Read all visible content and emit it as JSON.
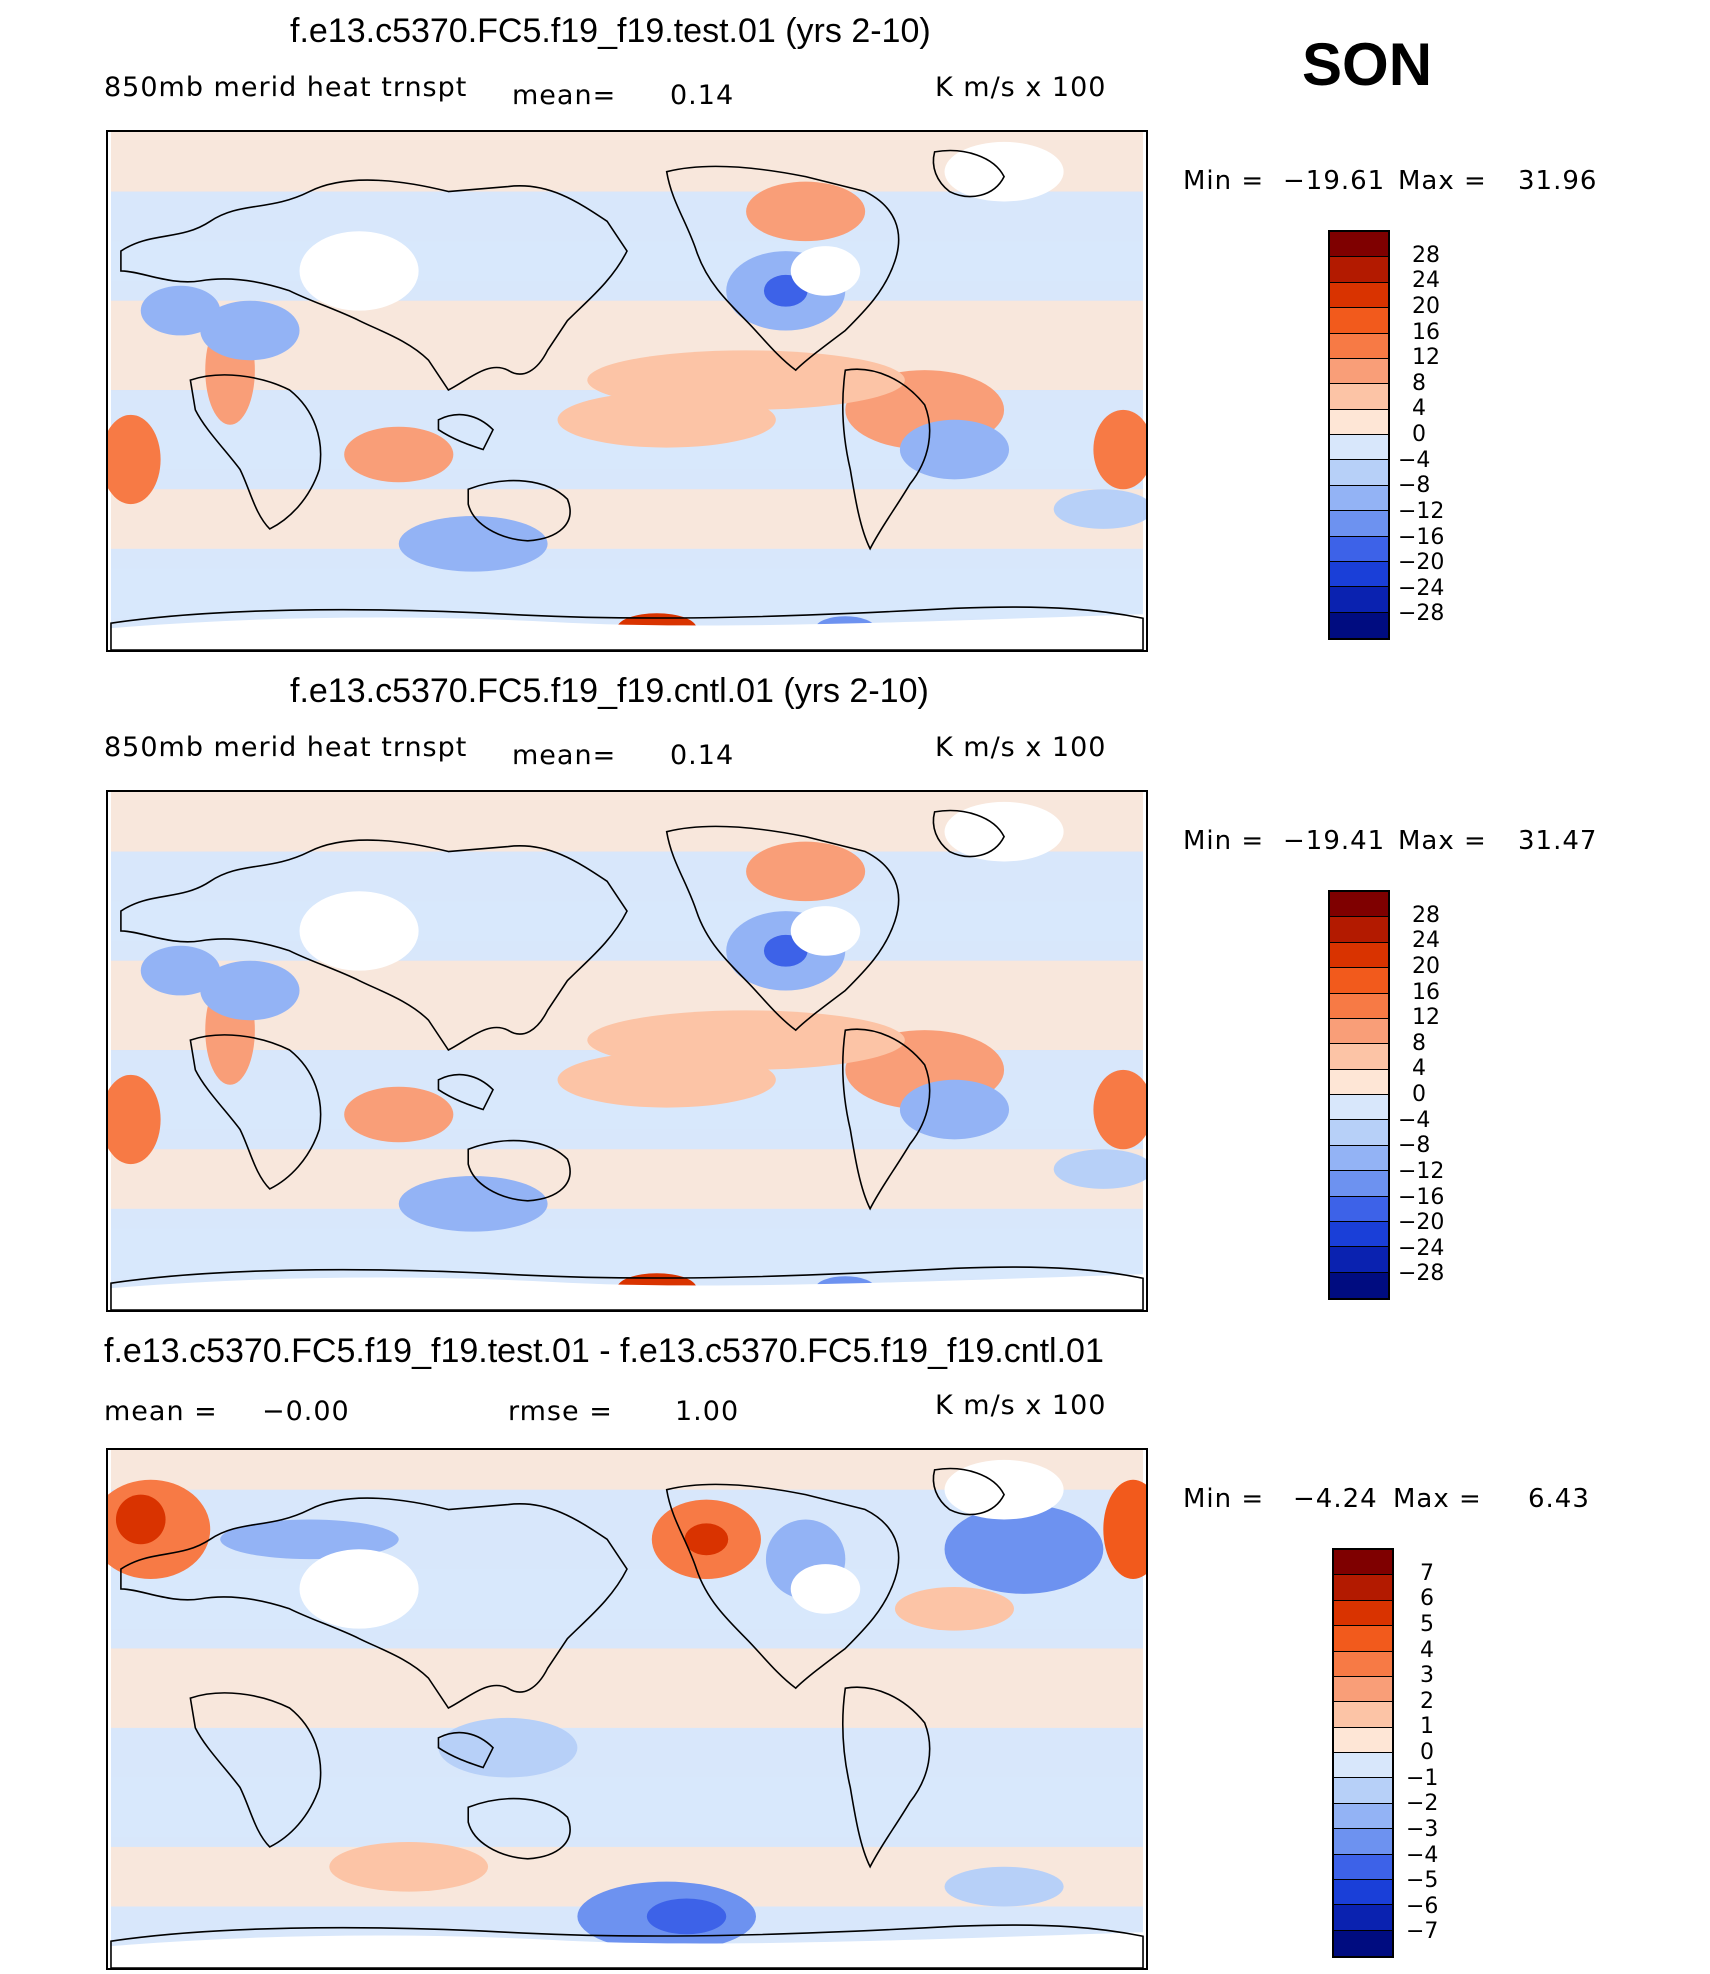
{
  "season": "SON",
  "chart_data": [
    {
      "type": "heatmap",
      "title": "f.e13.c5370.FC5.f19_f19.test.01 (yrs 2-10)",
      "variable": "850mb  merid  heat  trnspt",
      "stat_label": "mean=",
      "stat_value": "0.14",
      "units": "K  m/s  x  100",
      "min_label": "Min  =",
      "min_value": "−19.61",
      "max_label": "Max  =",
      "max_value": "31.96",
      "levels": [
        "28",
        "24",
        "20",
        "16",
        "12",
        "8",
        "4",
        "0",
        "−4",
        "−8",
        "−12",
        "−16",
        "−20",
        "−24",
        "−28"
      ],
      "colors": [
        "#7f0000",
        "#b31a00",
        "#d93300",
        "#f25a1c",
        "#f77a45",
        "#f99e78",
        "#fcc4a6",
        "#fee6d6",
        "#d8e7fb",
        "#b7d0f8",
        "#93b3f5",
        "#6d92f0",
        "#3d62e8",
        "#1a3fd8",
        "#0a22b0",
        "#000c80"
      ]
    },
    {
      "type": "heatmap",
      "title": "f.e13.c5370.FC5.f19_f19.cntl.01 (yrs 2-10)",
      "variable": "850mb  merid  heat  trnspt",
      "stat_label": "mean=",
      "stat_value": "0.14",
      "units": "K  m/s  x  100",
      "min_label": "Min  =",
      "min_value": "−19.41",
      "max_label": "Max  =",
      "max_value": "31.47",
      "levels": [
        "28",
        "24",
        "20",
        "16",
        "12",
        "8",
        "4",
        "0",
        "−4",
        "−8",
        "−12",
        "−16",
        "−20",
        "−24",
        "−28"
      ],
      "colors": [
        "#7f0000",
        "#b31a00",
        "#d93300",
        "#f25a1c",
        "#f77a45",
        "#f99e78",
        "#fcc4a6",
        "#fee6d6",
        "#d8e7fb",
        "#b7d0f8",
        "#93b3f5",
        "#6d92f0",
        "#3d62e8",
        "#1a3fd8",
        "#0a22b0",
        "#000c80"
      ]
    },
    {
      "type": "heatmap",
      "title": "f.e13.c5370.FC5.f19_f19.test.01 - f.e13.c5370.FC5.f19_f19.cntl.01",
      "mean_label": "mean  =",
      "mean_value": "−0.00",
      "rmse_label": "rmse  =",
      "rmse_value": "1.00",
      "units": "K  m/s  x  100",
      "min_label": "Min  =",
      "min_value": "−4.24",
      "max_label": "Max  =",
      "max_value": "6.43",
      "levels": [
        "7",
        "6",
        "5",
        "4",
        "3",
        "2",
        "1",
        "0",
        "−1",
        "−2",
        "−3",
        "−4",
        "−5",
        "−6",
        "−7"
      ],
      "colors": [
        "#7f0000",
        "#b31a00",
        "#d93300",
        "#f25a1c",
        "#f77a45",
        "#f99e78",
        "#fcc4a6",
        "#fee6d6",
        "#d8e7fb",
        "#b7d0f8",
        "#93b3f5",
        "#6d92f0",
        "#3d62e8",
        "#1a3fd8",
        "#0a22b0",
        "#000c80"
      ]
    }
  ]
}
